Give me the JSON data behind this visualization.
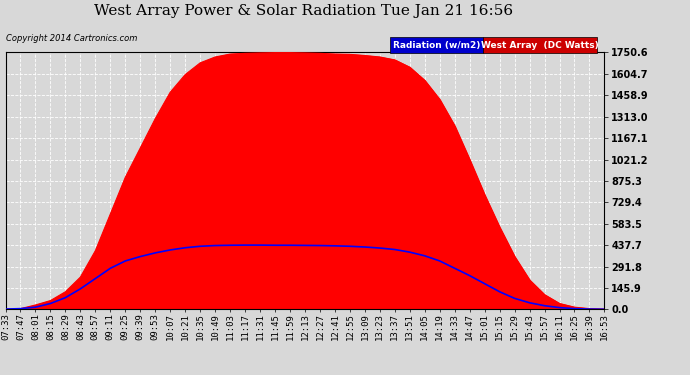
{
  "title": "West Array Power & Solar Radiation Tue Jan 21 16:56",
  "copyright": "Copyright 2014 Cartronics.com",
  "background_color": "#d8d8d8",
  "legend_labels": [
    "Radiation (w/m2)",
    "West Array  (DC Watts)"
  ],
  "legend_bg_radiation": "#0000cc",
  "legend_bg_power": "#cc0000",
  "y_max": 1750.6,
  "y_min": 0.0,
  "y_ticks": [
    0.0,
    145.9,
    291.8,
    437.7,
    583.5,
    729.4,
    875.3,
    1021.2,
    1167.1,
    1313.0,
    1458.9,
    1604.7,
    1750.6
  ],
  "y_tick_labels": [
    "0.0",
    "145.9",
    "291.8",
    "437.7",
    "583.5",
    "729.4",
    "875.3",
    "1021.2",
    "1167.1",
    "1313.0",
    "1458.9",
    "1604.7",
    "1750.6"
  ],
  "x_labels": [
    "07:33",
    "07:47",
    "08:01",
    "08:15",
    "08:29",
    "08:43",
    "08:57",
    "09:11",
    "09:25",
    "09:39",
    "09:53",
    "10:07",
    "10:21",
    "10:35",
    "10:49",
    "11:03",
    "11:17",
    "11:31",
    "11:45",
    "11:59",
    "12:13",
    "12:27",
    "12:41",
    "12:55",
    "13:09",
    "13:23",
    "13:37",
    "13:51",
    "14:05",
    "14:19",
    "14:33",
    "14:47",
    "15:01",
    "15:15",
    "15:29",
    "15:43",
    "15:57",
    "16:11",
    "16:25",
    "16:39",
    "16:53"
  ],
  "grid_color": "#ffffff",
  "line_color_radiation": "#0000ff",
  "fill_color_power": "#ff0000",
  "title_fontsize": 11,
  "tick_fontsize": 6.5,
  "power_values": [
    0,
    5,
    30,
    60,
    120,
    220,
    400,
    650,
    900,
    1100,
    1300,
    1480,
    1600,
    1680,
    1720,
    1740,
    1745,
    1748,
    1750,
    1750,
    1748,
    1745,
    1740,
    1738,
    1730,
    1720,
    1700,
    1650,
    1560,
    1430,
    1250,
    1020,
    780,
    560,
    360,
    200,
    100,
    40,
    15,
    5,
    2
  ],
  "radiation_values": [
    2,
    5,
    15,
    40,
    80,
    140,
    210,
    280,
    330,
    360,
    385,
    405,
    420,
    430,
    435,
    437,
    438,
    438,
    437,
    437,
    436,
    435,
    433,
    430,
    425,
    418,
    408,
    390,
    365,
    330,
    280,
    230,
    175,
    120,
    75,
    45,
    25,
    12,
    5,
    2,
    1
  ]
}
